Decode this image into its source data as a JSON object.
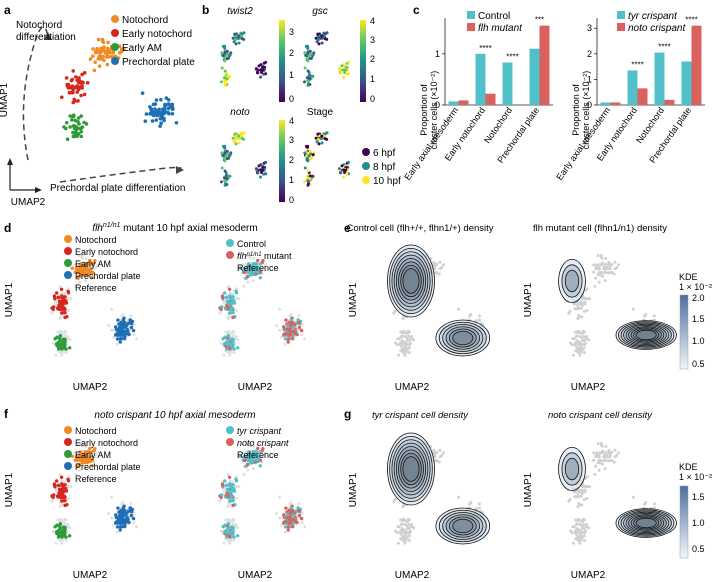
{
  "panel_letters": {
    "a": "a",
    "b": "b",
    "c": "c",
    "d": "d",
    "e": "e",
    "f": "f",
    "g": "g"
  },
  "colors": {
    "notochord": "#f08a24",
    "early_notochord": "#d7261e",
    "early_am": "#2e9b3a",
    "prechordal": "#1f6fb4",
    "reference": "#e0e0e0",
    "control": "#52c0c8",
    "mutant": "#d9625f",
    "kde_low": "#f2f6fb",
    "kde_high": "#4d6fa0",
    "viridis": [
      "#440154",
      "#3b528b",
      "#21908d",
      "#5dc863",
      "#fde725"
    ]
  },
  "panel_a": {
    "legend": [
      "Notochord",
      "Early notochord",
      "Early AM",
      "Prechordal plate"
    ],
    "arrow_label_1": "Notochord",
    "arrow_label_2": "differentiation",
    "arrow_label_3": "Prechordal plate differentiation",
    "xlabel": "UMAP2",
    "ylabel": "UMAP1"
  },
  "panel_b": {
    "titles": [
      "twist2",
      "gsc",
      "noto",
      "Stage"
    ],
    "colorbar1_ticks": [
      "3",
      "2",
      "1",
      "0"
    ],
    "colorbar2_ticks": [
      "4",
      "3",
      "2",
      "1",
      "0"
    ],
    "colorbar3_ticks": [
      "4",
      "3",
      "2",
      "1",
      "0"
    ],
    "stage_legend": [
      "6 hpf",
      "8 hpf",
      "10 hpf"
    ]
  },
  "panel_c": {
    "ylabel_1": "Proportion of",
    "ylabel_2": "cluster cells (×10⁻²)",
    "yticks": [
      "0",
      "1",
      "2",
      "3"
    ],
    "chart_data": [
      {
        "type": "bar",
        "categories": [
          "Early axial mesoderm",
          "Early notochord",
          "Notochord",
          "Prechordal plate"
        ],
        "series": [
          {
            "name": "Control",
            "values": [
              0.07,
              1.0,
              0.83,
              1.1
            ]
          },
          {
            "name": "flh mutant",
            "values": [
              0.09,
              0.22,
              0.0,
              1.55
            ]
          }
        ],
        "significance": [
          "",
          "****",
          "****",
          "***"
        ],
        "ylim": [
          0,
          1.7
        ]
      },
      {
        "type": "bar",
        "categories": [
          "Early axial mesoderm",
          "Early notochord",
          "Notochord",
          "Prechordal plate"
        ],
        "series": [
          {
            "name": "tyr crispant",
            "values": [
              0.1,
              1.35,
              2.05,
              1.7
            ]
          },
          {
            "name": "noto crispant",
            "values": [
              0.1,
              0.65,
              0.2,
              3.1
            ]
          }
        ],
        "significance": [
          "",
          "****",
          "****",
          "****"
        ],
        "ylim": [
          0,
          3.4
        ]
      }
    ]
  },
  "panel_d": {
    "title_pre": "flh",
    "title_sup": "n1/n1",
    "title_post": " mutant 10 hpf axial mesoderm",
    "legend_left": [
      "Notochord",
      "Early notochord",
      "Early AM",
      "Prechordal plate",
      "Reference"
    ],
    "legend_right_control": "Control",
    "legend_right_mutant_pre": "flh",
    "legend_right_mutant_sup": "n1/n1",
    "legend_right_mutant_post": " mutant",
    "legend_right_reference": "Reference",
    "xlabel": "UMAP2",
    "ylabel": "UMAP1"
  },
  "panel_e": {
    "title_left": "Control cell (flh+/+, flhn1/+) density",
    "title_right": "flh mutant cell (flhn1/n1) density",
    "kde_label": "KDE",
    "kde_unit": "1 × 10⁻²",
    "kde_ticks": [
      "2.0",
      "1.5",
      "1.0",
      "0.5"
    ],
    "xlabel": "UMAP2",
    "ylabel": "UMAP1"
  },
  "panel_f": {
    "title": "noto crispant 10 hpf axial mesoderm",
    "legend_left": [
      "Notochord",
      "Early notochord",
      "Early AM",
      "Prechordal plate",
      "Reference"
    ],
    "legend_right": [
      "tyr crispant",
      "noto crispant",
      "Reference"
    ],
    "xlabel": "UMAP2",
    "ylabel": "UMAP1"
  },
  "panel_g": {
    "title_left": "tyr crispant cell density",
    "title_right": "noto crispant cell density",
    "kde_label": "KDE",
    "kde_unit": "1 × 10⁻²",
    "kde_ticks": [
      "1.5",
      "1.0",
      "0.5"
    ],
    "xlabel": "UMAP2",
    "ylabel": "UMAP1"
  }
}
